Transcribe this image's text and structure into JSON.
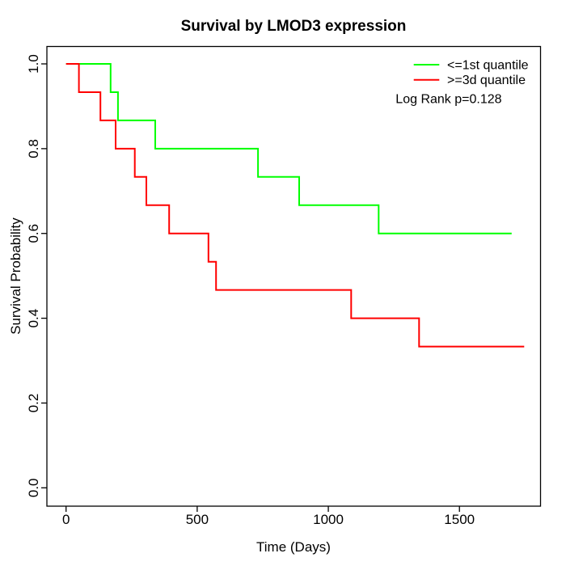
{
  "legend": {
    "entries": [
      {
        "label": "<=1st quantile",
        "color": "#00ff00"
      },
      {
        "label": ">=3d quantile",
        "color": "#ff0000"
      }
    ],
    "annotation": "Log Rank p=0.128"
  },
  "chart_data": {
    "type": "line",
    "subtype": "kaplan-meier-step",
    "title": "Survival by LMOD3 expression",
    "xlabel": "Time (Days)",
    "ylabel": "Survival Probability",
    "xlim": [
      0,
      1807
    ],
    "ylim": [
      0,
      1
    ],
    "x_ticks": [
      0,
      500,
      1000,
      1500
    ],
    "x_tick_labels": [
      "0",
      "500",
      "1000",
      "1500"
    ],
    "y_ticks": [
      0.0,
      0.2,
      0.4,
      0.6,
      0.8,
      1.0
    ],
    "y_tick_labels": [
      "0.0",
      "0.2",
      "0.4",
      "0.6",
      "0.8",
      "1.0"
    ],
    "grid": false,
    "legend_position": "top-right",
    "annotation": "Log Rank p=0.128",
    "series": [
      {
        "name": "<=1st quantile",
        "color": "#00ff00",
        "points": [
          [
            0,
            1.0
          ],
          [
            170,
            0.9333
          ],
          [
            198,
            0.8667
          ],
          [
            340,
            0.8
          ],
          [
            732,
            0.7333
          ],
          [
            889,
            0.6667
          ],
          [
            1192,
            0.6
          ],
          [
            1699,
            0.6
          ]
        ]
      },
      {
        "name": ">=3d quantile",
        "color": "#ff0000",
        "points": [
          [
            0,
            1.0
          ],
          [
            49,
            0.9333
          ],
          [
            131,
            0.8667
          ],
          [
            189,
            0.8
          ],
          [
            262,
            0.7333
          ],
          [
            306,
            0.6667
          ],
          [
            393,
            0.6
          ],
          [
            543,
            0.5333
          ],
          [
            572,
            0.4667
          ],
          [
            1087,
            0.4
          ],
          [
            1346,
            0.3333
          ],
          [
            1747,
            0.3333
          ]
        ]
      }
    ]
  }
}
